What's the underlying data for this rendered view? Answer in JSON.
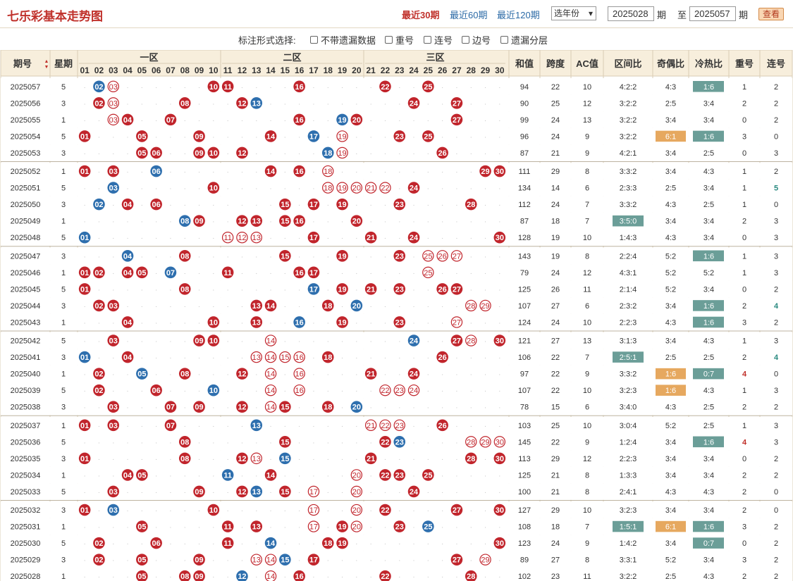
{
  "title": "七乐彩基本走势图",
  "periods": [
    "最近30期",
    "最近60期",
    "最近120期"
  ],
  "period_active": 0,
  "year_select": "选年份",
  "from_issue": "2025028",
  "issue_label": "期",
  "to_label": "至",
  "to_issue": "2025057",
  "view_button": "查看",
  "options_label": "标注形式选择:",
  "options": [
    "不带遗漏数据",
    "重号",
    "连号",
    "边号",
    "遗漏分层"
  ],
  "headers": {
    "issue": "期号",
    "week": "星期",
    "zone1": "一区",
    "zone2": "二区",
    "zone3": "三区",
    "sum": "和值",
    "span": "跨度",
    "ac": "AC值",
    "zone_ratio": "区间比",
    "odd_even": "奇偶比",
    "hot_cold": "冷热比",
    "repeat": "重号",
    "consec": "连号"
  },
  "sort_icon": "sort-arrows-icon",
  "numbers": [
    "01",
    "02",
    "03",
    "04",
    "05",
    "06",
    "07",
    "08",
    "09",
    "10",
    "11",
    "12",
    "13",
    "14",
    "15",
    "16",
    "17",
    "18",
    "19",
    "20",
    "21",
    "22",
    "23",
    "24",
    "25",
    "26",
    "27",
    "28",
    "29",
    "30"
  ],
  "colors": {
    "red_ball": "#c1252c",
    "blue_ball": "#2e6fae",
    "hollow_ball": "#c1252c",
    "omit_text": "#c6c6c6",
    "highlight": "#e6a85f",
    "teal": "#6b9e98",
    "header_bg": "#f7eedc",
    "accent": "#c0312b"
  },
  "rows": [
    {
      "issue": "2025057",
      "week": "5",
      "red": [
        10,
        11,
        16,
        22,
        25
      ],
      "blue": [
        2
      ],
      "hollow": [
        3
      ],
      "sum": "94",
      "span": "22",
      "ac": "10",
      "zr": "4:2:2",
      "oe": "4:3",
      "hc": "1:6",
      "rep": "1",
      "con": "2"
    },
    {
      "issue": "2025056",
      "week": "3",
      "red": [
        2,
        8,
        12,
        24,
        27
      ],
      "blue": [
        13
      ],
      "hollow": [
        3
      ],
      "sum": "90",
      "span": "25",
      "ac": "12",
      "zr": "3:2:2",
      "oe": "2:5",
      "hc": "3:4",
      "rep": "2",
      "con": "2"
    },
    {
      "issue": "2025055",
      "week": "1",
      "red": [
        4,
        7,
        16,
        20,
        27
      ],
      "blue": [
        19
      ],
      "hollow": [
        3
      ],
      "sum": "99",
      "span": "24",
      "ac": "13",
      "zr": "3:2:2",
      "oe": "3:4",
      "hc": "3:4",
      "rep": "0",
      "con": "2"
    },
    {
      "issue": "2025054",
      "week": "5",
      "red": [
        1,
        5,
        9,
        14,
        23,
        25
      ],
      "blue": [
        17
      ],
      "hollow": [
        19
      ],
      "sum": "96",
      "span": "24",
      "ac": "9",
      "zr": "3:2:2",
      "oe": "6:1",
      "hc": "1:6",
      "rep": "3",
      "con": "0"
    },
    {
      "issue": "2025053",
      "week": "3",
      "red": [
        5,
        6,
        9,
        10,
        12,
        26
      ],
      "blue": [
        18
      ],
      "hollow": [
        19
      ],
      "sum": "87",
      "span": "21",
      "ac": "9",
      "zr": "4:2:1",
      "oe": "3:4",
      "hc": "2:5",
      "rep": "0",
      "con": "3"
    },
    {
      "issue": "2025052",
      "week": "1",
      "red": [
        1,
        3,
        14,
        16,
        29,
        30
      ],
      "blue": [
        6
      ],
      "hollow": [
        18
      ],
      "sum": "111",
      "span": "29",
      "ac": "8",
      "zr": "3:3:2",
      "oe": "3:4",
      "hc": "4:3",
      "rep": "1",
      "con": "2"
    },
    {
      "issue": "2025051",
      "week": "5",
      "red": [
        10,
        24
      ],
      "blue": [
        3
      ],
      "hollow": [
        18,
        19,
        20,
        21,
        22
      ],
      "sum": "134",
      "span": "14",
      "ac": "6",
      "zr": "2:3:3",
      "oe": "2:5",
      "hc": "3:4",
      "rep": "1",
      "con": "5"
    },
    {
      "issue": "2025050",
      "week": "3",
      "red": [
        4,
        6,
        15,
        17,
        19,
        23,
        28
      ],
      "blue": [
        2
      ],
      "hollow": [],
      "sum": "112",
      "span": "24",
      "ac": "7",
      "zr": "3:3:2",
      "oe": "4:3",
      "hc": "2:5",
      "rep": "1",
      "con": "0"
    },
    {
      "issue": "2025049",
      "week": "1",
      "red": [
        9,
        12,
        13,
        15,
        16,
        20
      ],
      "blue": [
        8
      ],
      "hollow": [],
      "sum": "87",
      "span": "18",
      "ac": "7",
      "zr": "3:5:0",
      "oe": "3:4",
      "hc": "3:4",
      "rep": "2",
      "con": "3"
    },
    {
      "issue": "2025048",
      "week": "5",
      "red": [
        17,
        21,
        24,
        30
      ],
      "blue": [
        1
      ],
      "hollow": [
        11,
        12,
        13
      ],
      "sum": "128",
      "span": "19",
      "ac": "10",
      "zr": "1:4:3",
      "oe": "4:3",
      "hc": "3:4",
      "rep": "0",
      "con": "3"
    },
    {
      "issue": "2025047",
      "week": "3",
      "red": [
        8,
        15,
        19,
        23
      ],
      "blue": [
        4
      ],
      "hollow": [
        25,
        26,
        27
      ],
      "sum": "143",
      "span": "19",
      "ac": "8",
      "zr": "2:2:4",
      "oe": "5:2",
      "hc": "1:6",
      "rep": "1",
      "con": "3"
    },
    {
      "issue": "2025046",
      "week": "1",
      "red": [
        1,
        2,
        4,
        5,
        11,
        16,
        17
      ],
      "blue": [
        7
      ],
      "hollow": [
        25
      ],
      "sum": "79",
      "span": "24",
      "ac": "12",
      "zr": "4:3:1",
      "oe": "5:2",
      "hc": "5:2",
      "rep": "1",
      "con": "3"
    },
    {
      "issue": "2025045",
      "week": "5",
      "red": [
        1,
        8,
        19,
        21,
        23,
        26,
        27
      ],
      "blue": [
        17
      ],
      "hollow": [],
      "sum": "125",
      "span": "26",
      "ac": "11",
      "zr": "2:1:4",
      "oe": "5:2",
      "hc": "3:4",
      "rep": "0",
      "con": "2"
    },
    {
      "issue": "2025044",
      "week": "3",
      "red": [
        2,
        3,
        13,
        14,
        18
      ],
      "blue": [
        20
      ],
      "hollow": [
        28,
        29
      ],
      "sum": "107",
      "span": "27",
      "ac": "6",
      "zr": "2:3:2",
      "oe": "3:4",
      "hc": "1:6",
      "rep": "2",
      "con": "4"
    },
    {
      "issue": "2025043",
      "week": "1",
      "red": [
        4,
        10,
        13,
        19,
        23
      ],
      "blue": [
        16
      ],
      "hollow": [
        27
      ],
      "sum": "124",
      "span": "24",
      "ac": "10",
      "zr": "2:2:3",
      "oe": "4:3",
      "hc": "1:6",
      "rep": "3",
      "con": "2"
    },
    {
      "issue": "2025042",
      "week": "5",
      "red": [
        3,
        9,
        10,
        27,
        30
      ],
      "blue": [
        24
      ],
      "hollow": [
        14,
        28
      ],
      "sum": "121",
      "span": "27",
      "ac": "13",
      "zr": "3:1:3",
      "oe": "3:4",
      "hc": "4:3",
      "rep": "1",
      "con": "3"
    },
    {
      "issue": "2025041",
      "week": "3",
      "red": [
        4,
        18,
        26
      ],
      "blue": [
        1
      ],
      "hollow": [
        13,
        14,
        15,
        16
      ],
      "sum": "106",
      "span": "22",
      "ac": "7",
      "zr": "2:5:1",
      "oe": "2:5",
      "hc": "2:5",
      "rep": "2",
      "con": "4"
    },
    {
      "issue": "2025040",
      "week": "1",
      "red": [
        2,
        8,
        12,
        21,
        24
      ],
      "blue": [
        5
      ],
      "hollow": [
        14,
        16
      ],
      "sum": "97",
      "span": "22",
      "ac": "9",
      "zr": "3:3:2",
      "oe": "1:6",
      "hc": "0:7",
      "rep": "4",
      "con": "0"
    },
    {
      "issue": "2025039",
      "week": "5",
      "red": [
        2,
        6
      ],
      "blue": [
        10
      ],
      "hollow": [
        14,
        16,
        22,
        23,
        24
      ],
      "sum": "107",
      "span": "22",
      "ac": "10",
      "zr": "3:2:3",
      "oe": "1:6",
      "hc": "4:3",
      "rep": "1",
      "con": "3"
    },
    {
      "issue": "2025038",
      "week": "3",
      "red": [
        3,
        7,
        9,
        12,
        15,
        18
      ],
      "blue": [
        20
      ],
      "hollow": [
        14
      ],
      "sum": "78",
      "span": "15",
      "ac": "6",
      "zr": "3:4:0",
      "oe": "4:3",
      "hc": "2:5",
      "rep": "2",
      "con": "2"
    },
    {
      "issue": "2025037",
      "week": "1",
      "red": [
        1,
        3,
        7,
        26
      ],
      "blue": [
        13
      ],
      "hollow": [
        21,
        22,
        23
      ],
      "sum": "103",
      "span": "25",
      "ac": "10",
      "zr": "3:0:4",
      "oe": "5:2",
      "hc": "2:5",
      "rep": "1",
      "con": "3"
    },
    {
      "issue": "2025036",
      "week": "5",
      "red": [
        8,
        15,
        22
      ],
      "blue": [
        23
      ],
      "hollow": [
        28,
        29,
        30
      ],
      "sum": "145",
      "span": "22",
      "ac": "9",
      "zr": "1:2:4",
      "oe": "3:4",
      "hc": "1:6",
      "rep": "4",
      "con": "3"
    },
    {
      "issue": "2025035",
      "week": "3",
      "red": [
        1,
        8,
        12,
        21,
        28,
        30
      ],
      "blue": [
        15
      ],
      "hollow": [
        13
      ],
      "sum": "113",
      "span": "29",
      "ac": "12",
      "zr": "2:2:3",
      "oe": "3:4",
      "hc": "3:4",
      "rep": "0",
      "con": "2"
    },
    {
      "issue": "2025034",
      "week": "1",
      "red": [
        4,
        5,
        14,
        22,
        23,
        25
      ],
      "blue": [
        11
      ],
      "hollow": [
        20
      ],
      "sum": "125",
      "span": "21",
      "ac": "8",
      "zr": "1:3:3",
      "oe": "3:4",
      "hc": "3:4",
      "rep": "2",
      "con": "2"
    },
    {
      "issue": "2025033",
      "week": "5",
      "red": [
        3,
        9,
        12,
        15,
        24
      ],
      "blue": [
        13
      ],
      "hollow": [
        17,
        20
      ],
      "sum": "100",
      "span": "21",
      "ac": "8",
      "zr": "2:4:1",
      "oe": "4:3",
      "hc": "4:3",
      "rep": "2",
      "con": "0"
    },
    {
      "issue": "2025032",
      "week": "3",
      "red": [
        1,
        10,
        22,
        27,
        30
      ],
      "blue": [
        3
      ],
      "hollow": [
        17,
        20
      ],
      "sum": "127",
      "span": "29",
      "ac": "10",
      "zr": "3:2:3",
      "oe": "3:4",
      "hc": "3:4",
      "rep": "2",
      "con": "0"
    },
    {
      "issue": "2025031",
      "week": "1",
      "red": [
        5,
        11,
        13,
        19,
        23
      ],
      "blue": [
        25
      ],
      "hollow": [
        17,
        20
      ],
      "sum": "108",
      "span": "18",
      "ac": "7",
      "zr": "1:5:1",
      "oe": "6:1",
      "hc": "1:6",
      "rep": "3",
      "con": "2"
    },
    {
      "issue": "2025030",
      "week": "5",
      "red": [
        2,
        6,
        11,
        18,
        19,
        30
      ],
      "blue": [
        14
      ],
      "hollow": [],
      "sum": "123",
      "span": "24",
      "ac": "9",
      "zr": "1:4:2",
      "oe": "3:4",
      "hc": "0:7",
      "rep": "0",
      "con": "2"
    },
    {
      "issue": "2025029",
      "week": "3",
      "red": [
        2,
        5,
        9,
        17,
        27
      ],
      "blue": [
        15
      ],
      "hollow": [
        13,
        14,
        29
      ],
      "sum": "89",
      "span": "27",
      "ac": "8",
      "zr": "3:3:1",
      "oe": "5:2",
      "hc": "3:4",
      "rep": "3",
      "con": "2"
    },
    {
      "issue": "2025028",
      "week": "1",
      "red": [
        5,
        8,
        9,
        16,
        22,
        28
      ],
      "blue": [
        12
      ],
      "hollow": [
        14
      ],
      "sum": "102",
      "span": "23",
      "ac": "11",
      "zr": "3:2:2",
      "oe": "2:5",
      "hc": "4:3",
      "rep": "2",
      "con": "2"
    }
  ]
}
